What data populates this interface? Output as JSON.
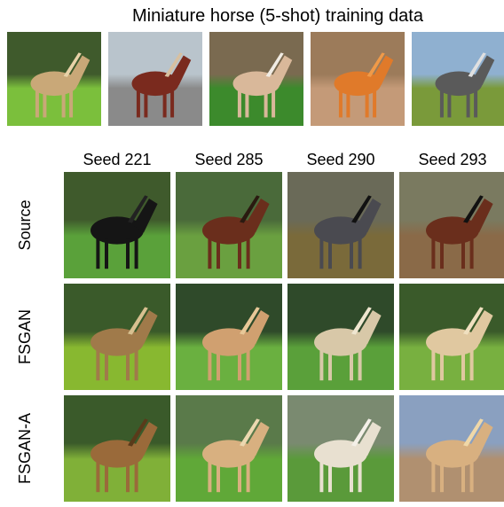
{
  "title": "Miniature horse (5-shot) training data",
  "columns": [
    "Seed 221",
    "Seed 285",
    "Seed 290",
    "Seed 293"
  ],
  "rows": [
    "Source",
    "FSGAN",
    "FSGAN-A"
  ]
}
